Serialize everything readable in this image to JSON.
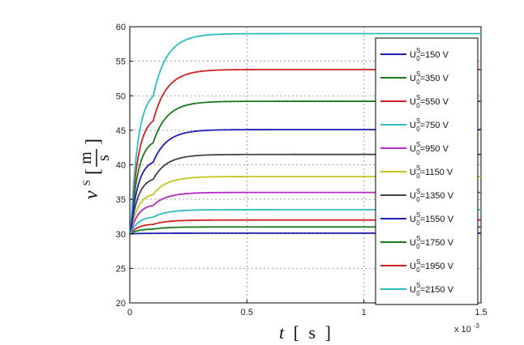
{
  "chart_data": {
    "type": "line",
    "xlabel": {
      "var": "t",
      "open": "[",
      "unit": "s",
      "close": "]"
    },
    "ylabel": {
      "var": "v",
      "sup": "S",
      "open": "[",
      "num": "m",
      "den": "s",
      "close": "]"
    },
    "x_multiplier": "x 10",
    "x_multiplier_exp": "-3",
    "xlim": [
      0,
      1.5
    ],
    "ylim": [
      20,
      60
    ],
    "xticks": [
      0,
      0.5,
      1,
      1.5
    ],
    "xtick_labels": [
      "0",
      "0.5",
      "1",
      "1.5"
    ],
    "yticks": [
      20,
      25,
      30,
      35,
      40,
      45,
      50,
      55,
      60
    ],
    "grid": true,
    "legend_placement": "right",
    "series": [
      {
        "name": "150 V",
        "color": "#1f1fb4",
        "final": 30.1
      },
      {
        "name": "350 V",
        "color": "#1a7a1a",
        "final": 49.2
      },
      {
        "name": "550 V",
        "color": "#cc2222",
        "final": 53.8
      },
      {
        "name": "750 V",
        "color": "#2ebdbd",
        "final": 59.0
      },
      {
        "name": "950 V",
        "color": "#b12bc4",
        "final": 36.0
      },
      {
        "name": "1150 V",
        "color": "#c4c422",
        "final": 38.3
      },
      {
        "name": "1350 V",
        "color": "#444444",
        "final": 41.5
      },
      {
        "name": "1550 V",
        "color": "#1f1fb4",
        "final": 45.1
      },
      {
        "name": "1750 V",
        "color": "#1a7a1a",
        "final": 31.0
      },
      {
        "name": "1950 V",
        "color": "#cc2222",
        "final": 32.0
      },
      {
        "name": "2150 V",
        "color": "#2ebdbd",
        "final": 33.5
      }
    ],
    "start": 30.0,
    "legend_label_prefix": "U",
    "legend_label_sup": "S",
    "legend_label_sub": "0",
    "legend_label_eq": "="
  }
}
